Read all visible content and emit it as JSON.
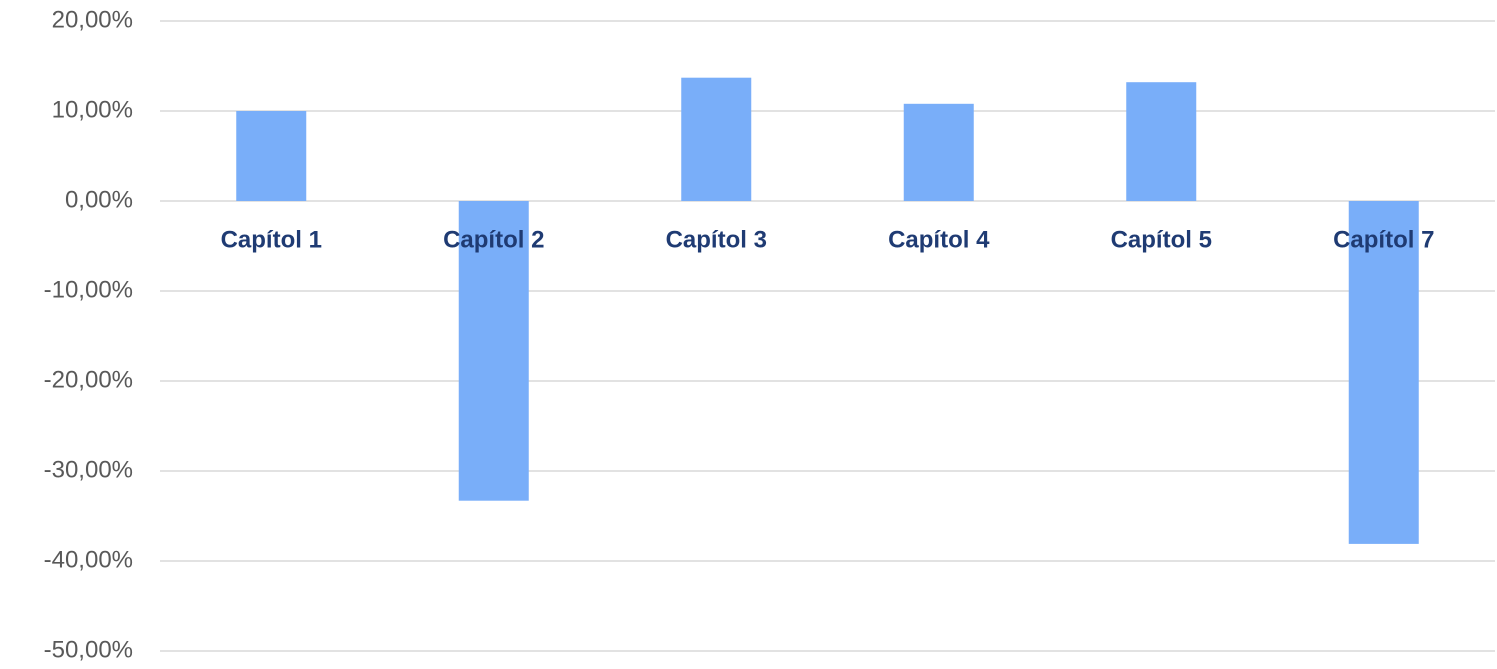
{
  "chart_data": {
    "type": "bar",
    "categories": [
      "Capítol 1",
      "Capítol 2",
      "Capítol 3",
      "Capítol 4",
      "Capítol 5",
      "Capítol 7"
    ],
    "values": [
      10.0,
      -33.3,
      13.7,
      10.8,
      13.2,
      -38.1
    ],
    "color": "#79aef9",
    "ylim": [
      -50,
      20
    ],
    "yticks": [
      {
        "value": 20,
        "label": "20,00%"
      },
      {
        "value": 10,
        "label": "10,00%"
      },
      {
        "value": 0,
        "label": "0,00%"
      },
      {
        "value": -10,
        "label": "-10,00%"
      },
      {
        "value": -20,
        "label": "-20,00%"
      },
      {
        "value": -30,
        "label": "-30,00%"
      },
      {
        "value": -40,
        "label": "-40,00%"
      },
      {
        "value": -50,
        "label": "-50,00%"
      }
    ],
    "grid": true
  }
}
